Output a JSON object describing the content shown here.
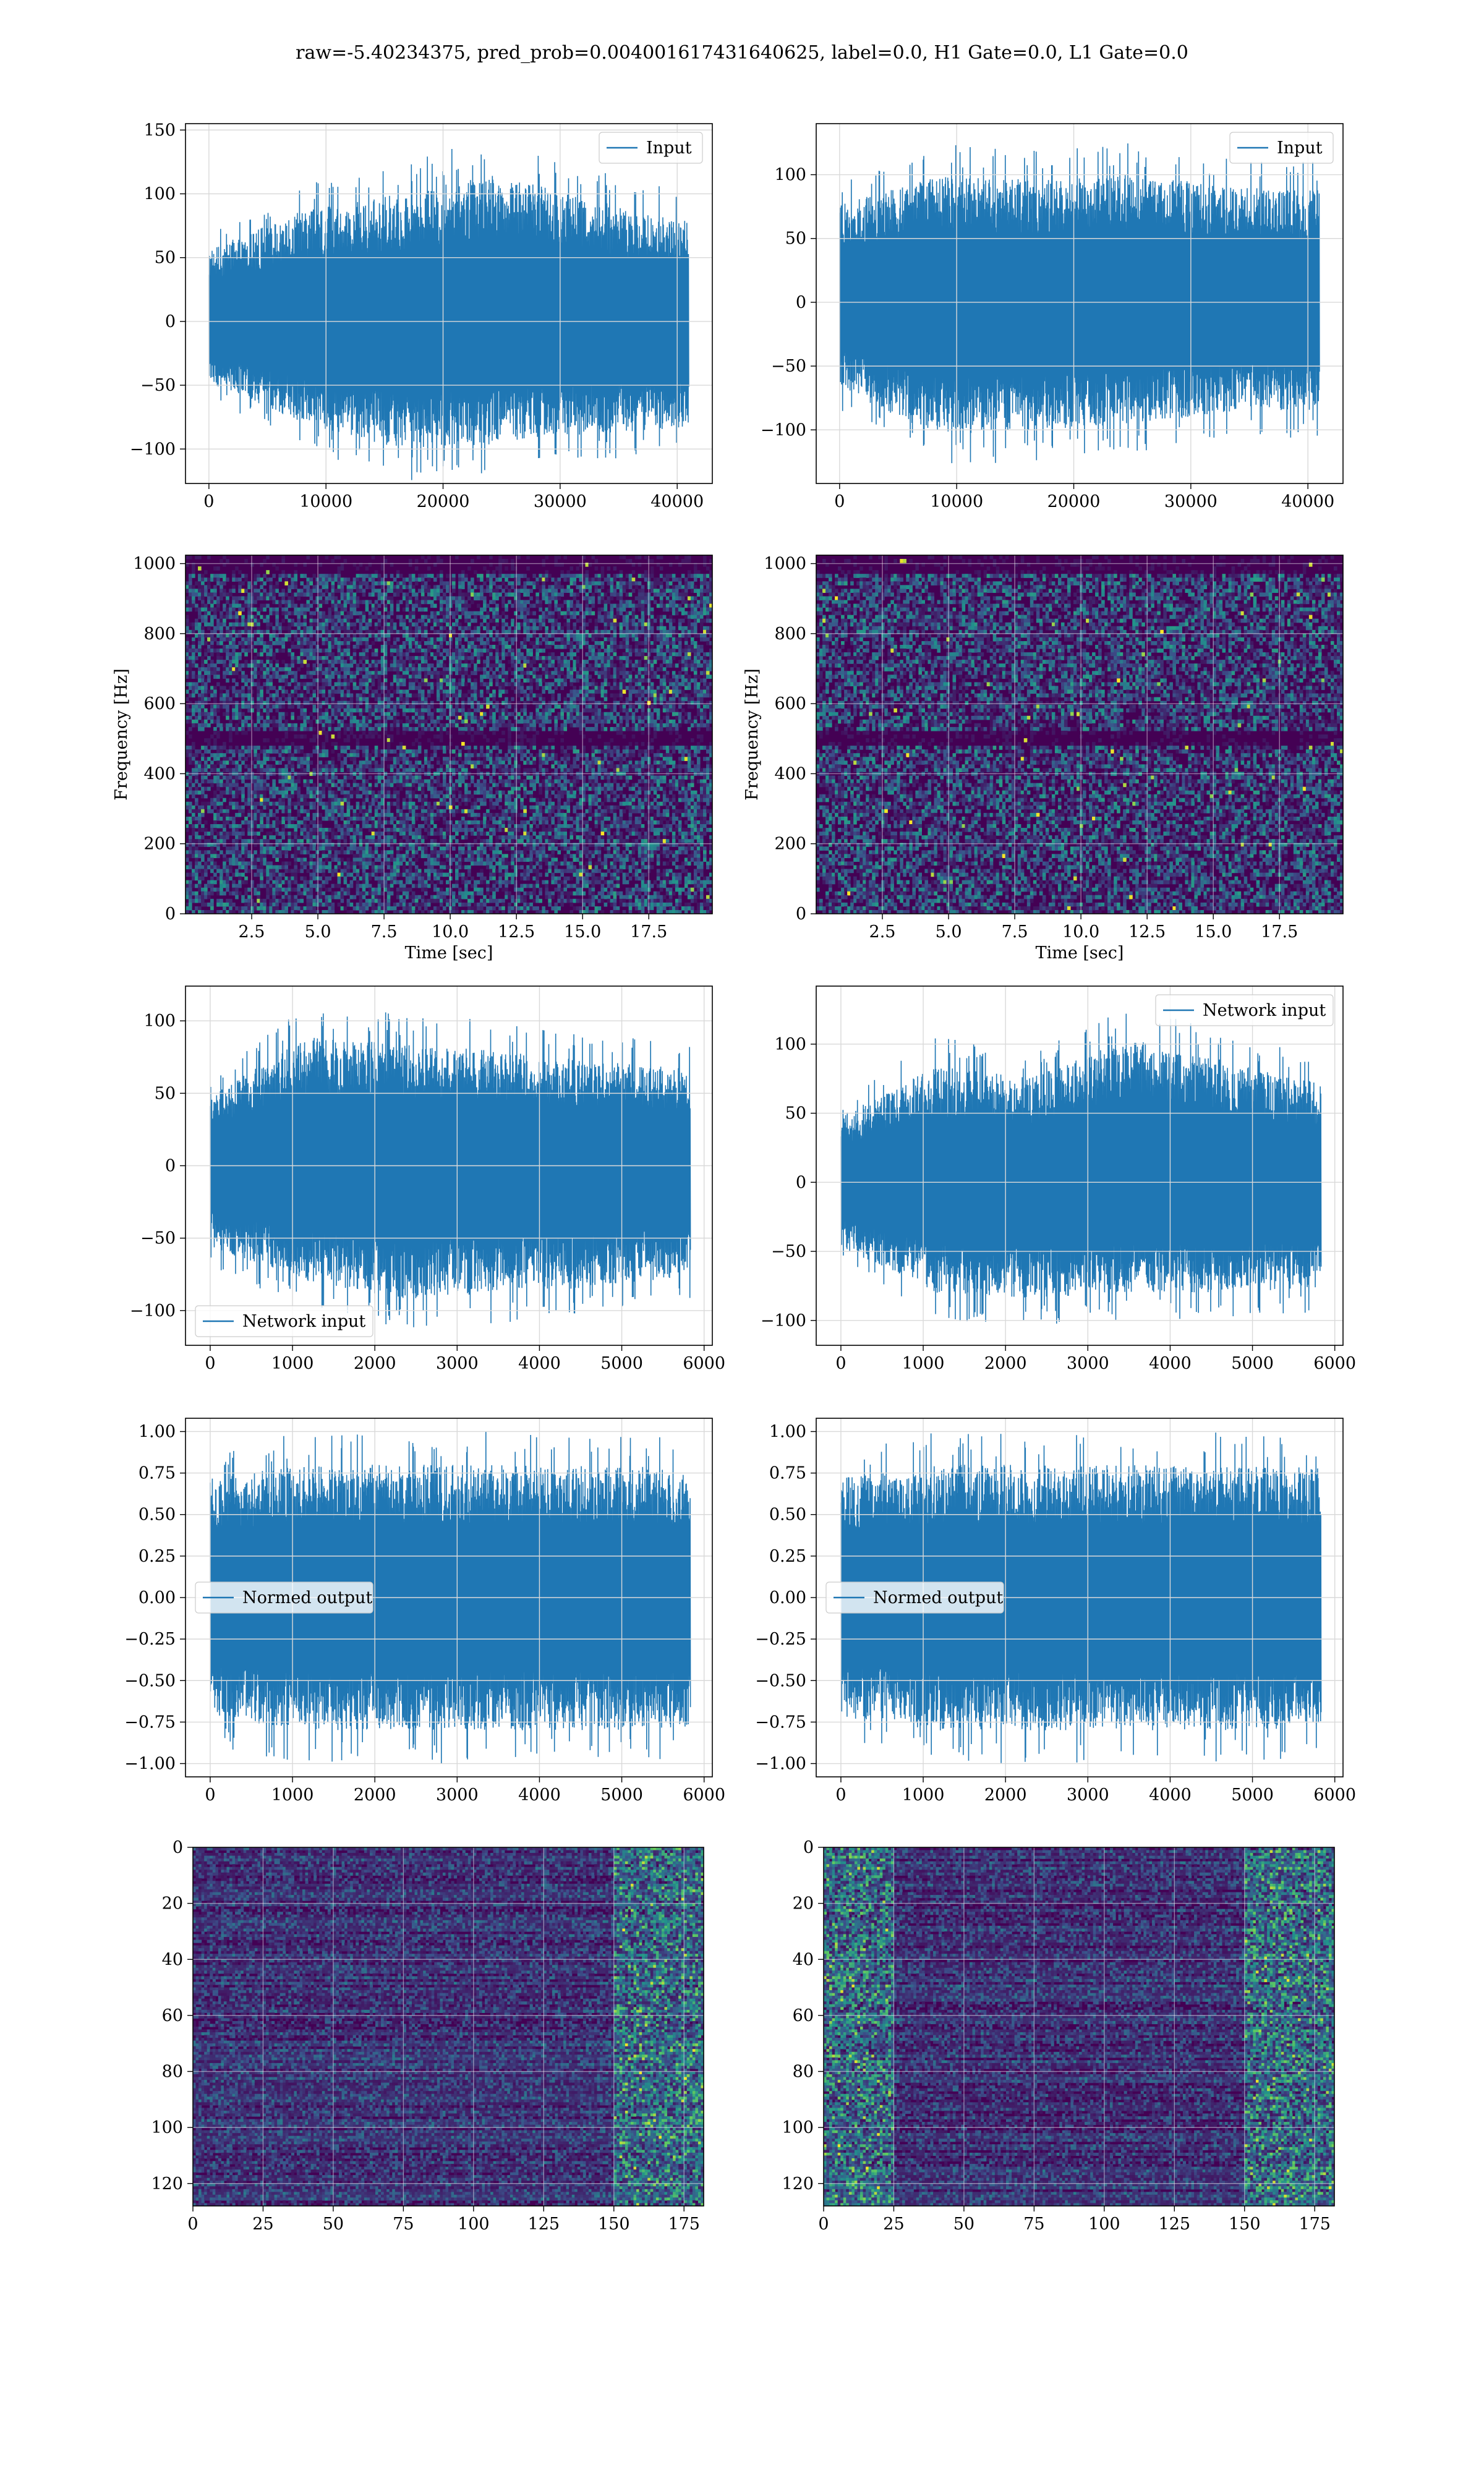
{
  "suptitle": "raw=-5.40234375, pred_prob=0.004001617431640625, label=0.0, H1 Gate=0.0, L1 Gate=0.0",
  "colors": {
    "series": "#1f77b4",
    "grid": "#d9d9d9",
    "viridis_low": "#440154",
    "viridis_mid": "#21918c",
    "viridis_high": "#fde725"
  },
  "chart_data": [
    {
      "id": "input-left",
      "type": "line",
      "legend": "Input",
      "legend_loc": "upper right",
      "xlim": [
        -2000,
        43000
      ],
      "xticks": [
        0,
        10000,
        20000,
        30000,
        40000
      ],
      "ylim": [
        -127,
        155
      ],
      "yticks": [
        -100,
        -50,
        0,
        50,
        100,
        150
      ],
      "grid": true,
      "series": [
        {
          "name": "Input",
          "x_range": [
            0,
            40960
          ],
          "envelope_high": [
            70,
            110,
            125,
            145,
            120,
            100
          ],
          "envelope_low": [
            -60,
            -100,
            -125,
            -120,
            -110,
            -105
          ]
        }
      ]
    },
    {
      "id": "input-right",
      "type": "line",
      "legend": "Input",
      "legend_loc": "upper right",
      "xlim": [
        -2000,
        43000
      ],
      "xticks": [
        0,
        10000,
        20000,
        30000,
        40000
      ],
      "ylim": [
        -142,
        140
      ],
      "yticks": [
        -100,
        -50,
        0,
        50,
        100
      ],
      "grid": true,
      "series": [
        {
          "name": "Input",
          "x_range": [
            0,
            40960
          ],
          "envelope_high": [
            95,
            125,
            120,
            125,
            115,
            110
          ],
          "envelope_low": [
            -85,
            -130,
            -125,
            -120,
            -110,
            -105
          ]
        }
      ]
    },
    {
      "id": "spectrogram-left",
      "type": "heatmap",
      "xlabel": "Time [sec]",
      "ylabel": "Frequency [Hz]",
      "xlim": [
        0,
        19.9
      ],
      "xticks": [
        2.5,
        5.0,
        7.5,
        10.0,
        12.5,
        15.0,
        17.5
      ],
      "ylim": [
        0,
        1024
      ],
      "yticks": [
        0,
        200,
        400,
        600,
        800,
        1000
      ],
      "colormap": "viridis",
      "grid": true,
      "dark_bands_hz": [
        500,
        1000
      ]
    },
    {
      "id": "spectrogram-right",
      "type": "heatmap",
      "xlabel": "Time [sec]",
      "ylabel": "Frequency [Hz]",
      "xlim": [
        0,
        19.9
      ],
      "xticks": [
        2.5,
        5.0,
        7.5,
        10.0,
        12.5,
        15.0,
        17.5
      ],
      "ylim": [
        0,
        1024
      ],
      "yticks": [
        0,
        200,
        400,
        600,
        800,
        1000
      ],
      "colormap": "viridis",
      "grid": true,
      "dark_bands_hz": [
        500,
        1000
      ]
    },
    {
      "id": "network-left",
      "type": "line",
      "legend": "Network input",
      "legend_loc": "lower left",
      "xlim": [
        -300,
        6100
      ],
      "xticks": [
        0,
        1000,
        2000,
        3000,
        4000,
        5000,
        6000
      ],
      "ylim": [
        -124,
        124
      ],
      "yticks": [
        -100,
        -50,
        0,
        50,
        100
      ],
      "grid": true,
      "series": [
        {
          "name": "Network input",
          "x_range": [
            0,
            5830
          ],
          "envelope_high": [
            60,
            112,
            105,
            100,
            90,
            85
          ],
          "envelope_low": [
            -70,
            -100,
            -115,
            -110,
            -105,
            -95
          ]
        }
      ]
    },
    {
      "id": "network-right",
      "type": "line",
      "legend": "Network input",
      "legend_loc": "upper right",
      "xlim": [
        -300,
        6100
      ],
      "xticks": [
        0,
        1000,
        2000,
        3000,
        4000,
        5000,
        6000
      ],
      "ylim": [
        -118,
        142
      ],
      "yticks": [
        -100,
        -50,
        0,
        50,
        100
      ],
      "grid": true,
      "series": [
        {
          "name": "Network input",
          "x_range": [
            0,
            5830
          ],
          "envelope_high": [
            60,
            105,
            95,
            130,
            110,
            90
          ],
          "envelope_low": [
            -60,
            -100,
            -105,
            -100,
            -100,
            -95
          ]
        }
      ]
    },
    {
      "id": "normed-left",
      "type": "line",
      "legend": "Normed output",
      "legend_loc": "center left",
      "xlim": [
        -300,
        6100
      ],
      "xticks": [
        0,
        1000,
        2000,
        3000,
        4000,
        5000,
        6000
      ],
      "ylim": [
        -1.08,
        1.08
      ],
      "yticks": [
        -1.0,
        -0.75,
        -0.5,
        -0.25,
        0.0,
        0.25,
        0.5,
        0.75,
        1.0
      ],
      "grid": true,
      "series": [
        {
          "name": "Normed output",
          "x_range": [
            0,
            5830
          ],
          "envelope_high": [
            0.9,
            1.0,
            1.0,
            1.0,
            1.0,
            0.98
          ],
          "envelope_low": [
            -0.9,
            -1.0,
            -1.0,
            -1.0,
            -1.0,
            -0.98
          ]
        }
      ]
    },
    {
      "id": "normed-right",
      "type": "line",
      "legend": "Normed output",
      "legend_loc": "center left",
      "xlim": [
        -300,
        6100
      ],
      "xticks": [
        0,
        1000,
        2000,
        3000,
        4000,
        5000,
        6000
      ],
      "ylim": [
        -1.08,
        1.08
      ],
      "yticks": [
        -1.0,
        -0.75,
        -0.5,
        -0.25,
        0.0,
        0.25,
        0.5,
        0.75,
        1.0
      ],
      "grid": true,
      "series": [
        {
          "name": "Normed output",
          "x_range": [
            0,
            5830
          ],
          "envelope_high": [
            0.9,
            1.0,
            1.0,
            1.0,
            1.0,
            0.98
          ],
          "envelope_low": [
            -0.9,
            -1.0,
            -1.0,
            -1.0,
            -1.0,
            -0.98
          ]
        }
      ]
    },
    {
      "id": "feature-map-left",
      "type": "heatmap",
      "xlim": [
        0,
        182
      ],
      "xticks": [
        0,
        25,
        50,
        75,
        100,
        125,
        150,
        175
      ],
      "ylim": [
        128,
        0
      ],
      "yticks": [
        0,
        20,
        40,
        60,
        80,
        100,
        120
      ],
      "colormap": "viridis",
      "grid": true,
      "bright_region_x": [
        150,
        182
      ]
    },
    {
      "id": "feature-map-right",
      "type": "heatmap",
      "xlim": [
        0,
        182
      ],
      "xticks": [
        0,
        25,
        50,
        75,
        100,
        125,
        150,
        175
      ],
      "ylim": [
        128,
        0
      ],
      "yticks": [
        0,
        20,
        40,
        60,
        80,
        100,
        120
      ],
      "colormap": "viridis",
      "grid": true,
      "bright_region_x": [
        0,
        25,
        150,
        182
      ]
    }
  ]
}
